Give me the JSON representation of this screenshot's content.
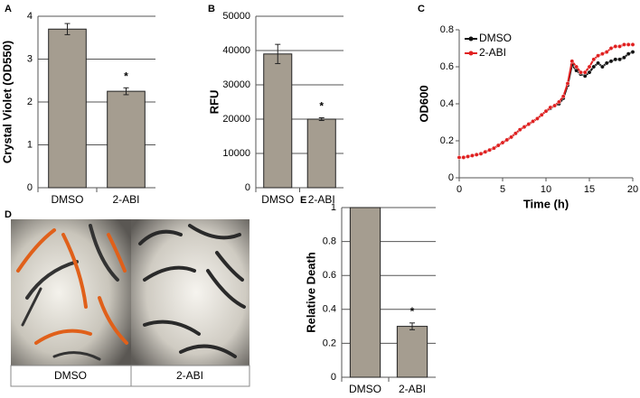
{
  "chart_data": [
    {
      "type": "bar",
      "label": "A",
      "y_label": "Crystal Violet (OD550)",
      "categories": [
        "DMSO",
        "2-ABI"
      ],
      "values": [
        3.7,
        2.25
      ],
      "errors": [
        0.13,
        0.08
      ],
      "color": "#a59d90",
      "ylim": [
        0,
        4
      ],
      "yticks": [
        0,
        1,
        2,
        3,
        4
      ],
      "grid": true,
      "annotations": [
        {
          "text": "*",
          "x": "2-ABI"
        }
      ]
    },
    {
      "type": "bar",
      "label": "B",
      "y_label": "RFU",
      "categories": [
        "DMSO",
        "2-ABI"
      ],
      "values": [
        39000,
        20000
      ],
      "errors": [
        2800,
        400
      ],
      "color": "#a59d90",
      "ylim": [
        0,
        50000
      ],
      "yticks": [
        0,
        10000,
        20000,
        30000,
        40000,
        50000
      ],
      "grid": true,
      "annotations": [
        {
          "text": "*",
          "x": "2-ABI"
        }
      ]
    },
    {
      "type": "line",
      "label": "C",
      "y_label": "OD600",
      "x_label": "Time (h)",
      "x": [
        0,
        0.5,
        1,
        1.5,
        2,
        2.5,
        3,
        3.5,
        4,
        4.5,
        5,
        5.5,
        6,
        6.5,
        7,
        7.5,
        8,
        8.5,
        9,
        9.5,
        10,
        10.5,
        11,
        11.5,
        12,
        12.5,
        13,
        13.5,
        14,
        14.5,
        15,
        15.5,
        16,
        16.5,
        17,
        17.5,
        18,
        18.5,
        19,
        19.5,
        20
      ],
      "series": [
        {
          "name": "DMSO",
          "color": "#111111",
          "values": [
            0.11,
            0.11,
            0.115,
            0.12,
            0.125,
            0.13,
            0.14,
            0.15,
            0.16,
            0.175,
            0.19,
            0.205,
            0.22,
            0.24,
            0.26,
            0.275,
            0.29,
            0.305,
            0.32,
            0.34,
            0.36,
            0.375,
            0.39,
            0.4,
            0.43,
            0.5,
            0.61,
            0.58,
            0.56,
            0.55,
            0.57,
            0.6,
            0.62,
            0.6,
            0.62,
            0.63,
            0.64,
            0.64,
            0.65,
            0.67,
            0.68
          ]
        },
        {
          "name": "2-ABI",
          "color": "#e02020",
          "values": [
            0.11,
            0.11,
            0.115,
            0.12,
            0.125,
            0.13,
            0.14,
            0.15,
            0.16,
            0.175,
            0.19,
            0.205,
            0.22,
            0.24,
            0.26,
            0.275,
            0.29,
            0.305,
            0.32,
            0.34,
            0.36,
            0.38,
            0.39,
            0.41,
            0.44,
            0.51,
            0.63,
            0.6,
            0.57,
            0.57,
            0.6,
            0.64,
            0.66,
            0.67,
            0.68,
            0.7,
            0.71,
            0.71,
            0.72,
            0.72,
            0.72
          ]
        }
      ],
      "xlim": [
        0,
        20
      ],
      "xticks": [
        0,
        5,
        10,
        15,
        20
      ],
      "ylim": [
        0,
        0.8
      ],
      "yticks": [
        0,
        0.2,
        0.4,
        0.6,
        0.8
      ],
      "legend": "upper-left"
    },
    {
      "type": "bar",
      "label": "E",
      "y_label": "Relative Death",
      "categories": [
        "DMSO",
        "2-ABI"
      ],
      "values": [
        1,
        0.3
      ],
      "errors": [
        0,
        0.02
      ],
      "color": "#a59d90",
      "ylim": [
        0,
        1
      ],
      "yticks": [
        0,
        0.2,
        0.4,
        0.6,
        0.8,
        1
      ],
      "grid": true,
      "annotations": [
        {
          "text": "*",
          "x": "2-ABI"
        }
      ]
    }
  ],
  "panel_d": {
    "label": "D",
    "captions": [
      "DMSO",
      "2-ABI"
    ]
  }
}
